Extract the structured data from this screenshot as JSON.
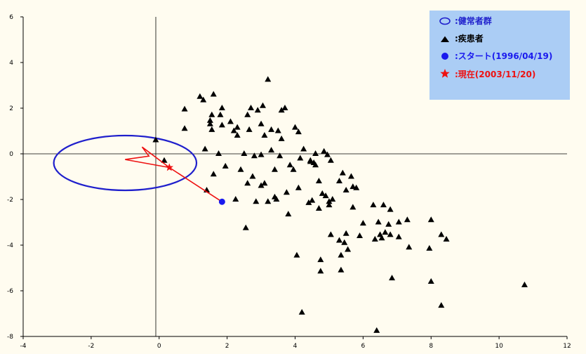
{
  "chart_data": {
    "type": "scatter",
    "xlim": [
      -4,
      12
    ],
    "ylim": [
      -8,
      6
    ],
    "x_ticks": [
      "-4",
      "-2",
      "0",
      "2",
      "4",
      "6",
      "8",
      "10",
      "12"
    ],
    "y_ticks": [
      "6",
      "4",
      "2",
      "0",
      "-2",
      "-4",
      "-6",
      "-8"
    ],
    "grid": false,
    "legend_position": "top-right",
    "colors": {
      "background": "#fffcf0",
      "legend_bg": "#abcdf5",
      "healthy": "#1f1fcc",
      "patient": "#000000",
      "start": "#1a1aee",
      "current": "#ee1111"
    },
    "legend": [
      {
        "icon": "ellipse-icon",
        "label": ":健常者群",
        "color": "#1f1fcc"
      },
      {
        "icon": "triangle-icon",
        "label": ":疾患者",
        "color": "#000000"
      },
      {
        "icon": "circle-icon",
        "label": ":スタート(1996/04/19)",
        "color": "#1a1aee"
      },
      {
        "icon": "star-icon",
        "label": ":現在(2003/11/20)",
        "color": "#ee1111"
      }
    ],
    "healthy_region": {
      "center": [
        -1.0,
        -0.4
      ],
      "radius_x": 2.1,
      "radius_y": 1.2
    },
    "start_point": [
      1.85,
      -2.1
    ],
    "current_point": [
      0.3,
      -0.6
    ],
    "trajectory": [
      [
        1.85,
        -2.1
      ],
      [
        0.3,
        -0.6
      ],
      [
        -0.5,
        0.3
      ],
      [
        -0.3,
        -0.1
      ],
      [
        -1.0,
        -0.25
      ],
      [
        0.3,
        -0.6
      ]
    ],
    "patients": [
      [
        -0.1,
        0.6
      ],
      [
        0.15,
        -0.3
      ],
      [
        0.75,
        1.95
      ],
      [
        0.75,
        1.1
      ],
      [
        1.2,
        2.5
      ],
      [
        1.3,
        2.35
      ],
      [
        1.35,
        0.2
      ],
      [
        1.4,
        -1.6
      ],
      [
        1.5,
        1.3
      ],
      [
        1.5,
        1.45
      ],
      [
        1.55,
        1.7
      ],
      [
        1.55,
        1.05
      ],
      [
        1.6,
        -0.9
      ],
      [
        1.6,
        2.6
      ],
      [
        1.75,
        0.0
      ],
      [
        1.8,
        1.7
      ],
      [
        1.85,
        2.0
      ],
      [
        1.85,
        1.25
      ],
      [
        1.95,
        -0.55
      ],
      [
        2.1,
        1.4
      ],
      [
        2.2,
        1.0
      ],
      [
        2.25,
        -2.0
      ],
      [
        2.3,
        1.15
      ],
      [
        2.3,
        0.8
      ],
      [
        2.4,
        -0.7
      ],
      [
        2.5,
        0.0
      ],
      [
        2.55,
        -3.25
      ],
      [
        2.6,
        -1.3
      ],
      [
        2.6,
        1.7
      ],
      [
        2.65,
        1.05
      ],
      [
        2.7,
        2.0
      ],
      [
        2.75,
        -1.0
      ],
      [
        2.8,
        -0.1
      ],
      [
        2.85,
        -2.1
      ],
      [
        2.9,
        1.9
      ],
      [
        3.0,
        -0.05
      ],
      [
        3.0,
        1.3
      ],
      [
        3.0,
        -1.4
      ],
      [
        3.05,
        2.1
      ],
      [
        3.1,
        0.8
      ],
      [
        3.1,
        -1.3
      ],
      [
        3.2,
        -2.1
      ],
      [
        3.2,
        3.25
      ],
      [
        3.3,
        0.15
      ],
      [
        3.3,
        1.05
      ],
      [
        3.4,
        -0.7
      ],
      [
        3.4,
        -1.9
      ],
      [
        3.45,
        -2.0
      ],
      [
        3.5,
        1.0
      ],
      [
        3.55,
        -0.1
      ],
      [
        3.6,
        0.65
      ],
      [
        3.6,
        1.9
      ],
      [
        3.7,
        2.0
      ],
      [
        3.75,
        -1.7
      ],
      [
        3.8,
        -2.65
      ],
      [
        3.85,
        -0.5
      ],
      [
        3.95,
        -0.7
      ],
      [
        4.0,
        1.15
      ],
      [
        4.05,
        -4.45
      ],
      [
        4.1,
        0.95
      ],
      [
        4.1,
        -1.5
      ],
      [
        4.15,
        -0.2
      ],
      [
        4.2,
        -6.95
      ],
      [
        4.25,
        0.2
      ],
      [
        4.4,
        -2.15
      ],
      [
        4.45,
        -0.3
      ],
      [
        4.45,
        -0.35
      ],
      [
        4.5,
        -2.05
      ],
      [
        4.55,
        -0.4
      ],
      [
        4.6,
        0.0
      ],
      [
        4.6,
        -0.5
      ],
      [
        4.7,
        -2.4
      ],
      [
        4.7,
        -1.2
      ],
      [
        4.75,
        -4.65
      ],
      [
        4.75,
        -5.15
      ],
      [
        4.8,
        -1.75
      ],
      [
        4.85,
        0.1
      ],
      [
        4.9,
        -1.85
      ],
      [
        4.95,
        -0.05
      ],
      [
        5.0,
        -2.1
      ],
      [
        5.0,
        -2.25
      ],
      [
        5.05,
        -0.3
      ],
      [
        5.05,
        -3.55
      ],
      [
        5.1,
        -2.0
      ],
      [
        5.3,
        -1.2
      ],
      [
        5.3,
        -3.8
      ],
      [
        5.35,
        -4.45
      ],
      [
        5.35,
        -5.1
      ],
      [
        5.4,
        -0.85
      ],
      [
        5.45,
        -3.9
      ],
      [
        5.5,
        -1.6
      ],
      [
        5.5,
        -3.5
      ],
      [
        5.55,
        -4.2
      ],
      [
        5.65,
        -1.0
      ],
      [
        5.7,
        -2.35
      ],
      [
        5.7,
        -1.45
      ],
      [
        5.8,
        -1.5
      ],
      [
        5.9,
        -3.6
      ],
      [
        6.0,
        -3.05
      ],
      [
        6.3,
        -2.25
      ],
      [
        6.35,
        -3.75
      ],
      [
        6.4,
        -7.75
      ],
      [
        6.45,
        -3.0
      ],
      [
        6.5,
        -3.55
      ],
      [
        6.55,
        -3.7
      ],
      [
        6.6,
        -2.25
      ],
      [
        6.65,
        -3.45
      ],
      [
        6.75,
        -3.1
      ],
      [
        6.8,
        -2.45
      ],
      [
        6.8,
        -3.55
      ],
      [
        6.85,
        -5.45
      ],
      [
        7.05,
        -3.0
      ],
      [
        7.05,
        -3.65
      ],
      [
        7.3,
        -2.9
      ],
      [
        7.35,
        -4.1
      ],
      [
        7.95,
        -4.15
      ],
      [
        8.0,
        -2.9
      ],
      [
        8.0,
        -5.6
      ],
      [
        8.3,
        -3.55
      ],
      [
        8.3,
        -6.65
      ],
      [
        8.45,
        -3.75
      ],
      [
        10.75,
        -5.75
      ]
    ]
  }
}
